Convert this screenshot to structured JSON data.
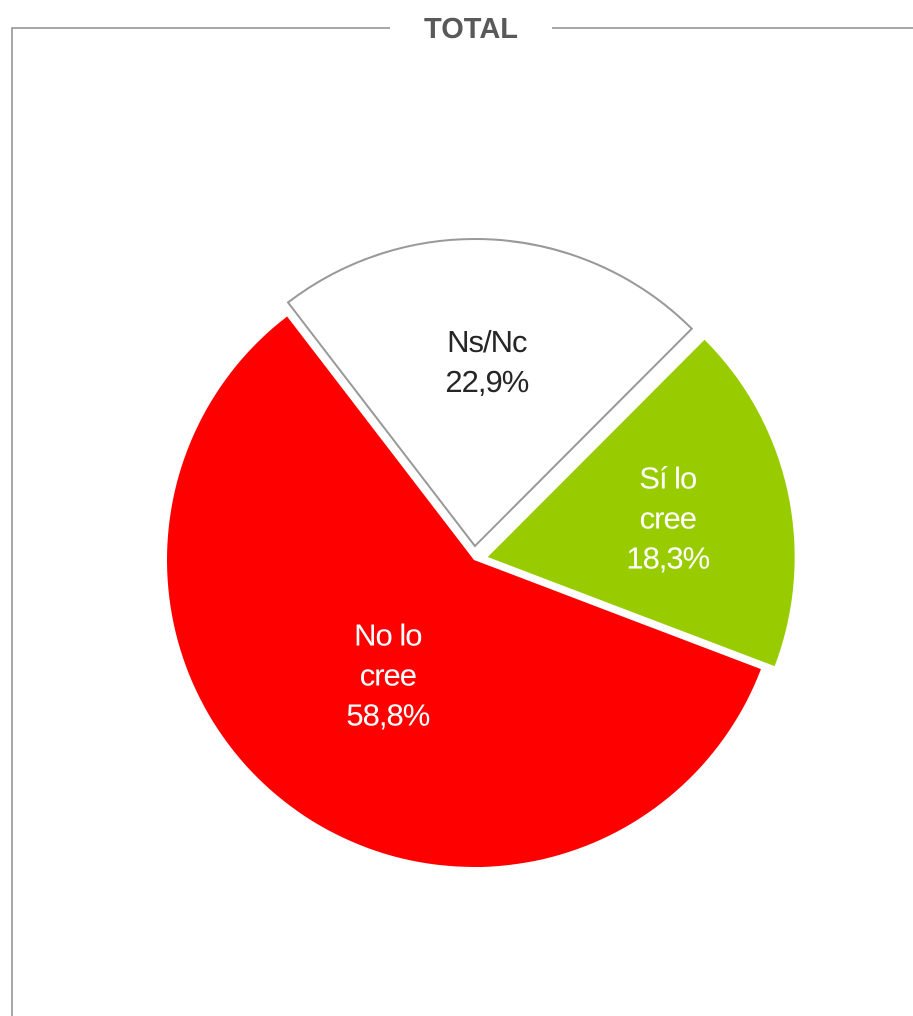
{
  "chart_data": {
    "type": "pie",
    "title": "TOTAL",
    "slices": [
      {
        "label_lines": [
          "Ns/Nc"
        ],
        "value_label": "22,9%",
        "value": 22.9,
        "color": "#ffffff",
        "label_color": "#262626",
        "border": "#999999"
      },
      {
        "label_lines": [
          "Sí lo",
          "cree"
        ],
        "value_label": "18,3%",
        "value": 18.3,
        "color": "#99cc00",
        "label_color": "#ffffff"
      },
      {
        "label_lines": [
          "No lo",
          "cree"
        ],
        "value_label": "58,8%",
        "value": 58.8,
        "color": "#ff0000",
        "label_color": "#ffffff"
      }
    ],
    "legend": "none"
  }
}
